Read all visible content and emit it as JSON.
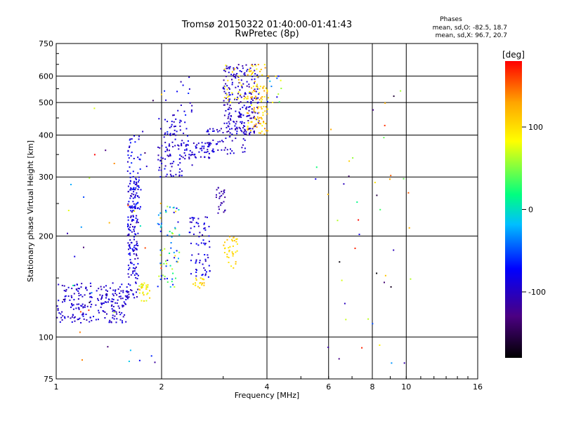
{
  "chart_data": {
    "type": "scatter",
    "title": "Tromsø 20150322 01:40:00-01:41:43",
    "subtitle": "RwPretec (8p)",
    "xlabel": "Frequency [MHz]",
    "ylabel": "Stationary phase Virtual Height [km]",
    "x_scale": "log2",
    "y_scale": "log",
    "xlim": [
      1,
      16
    ],
    "ylim": [
      75,
      750
    ],
    "x_ticks": [
      1,
      2,
      4,
      6,
      8,
      10,
      16
    ],
    "y_ticks": [
      75,
      100,
      200,
      300,
      400,
      500,
      600,
      750
    ],
    "x_grid": [
      2,
      4,
      6,
      8,
      10
    ],
    "y_grid": [
      100,
      200,
      300,
      400,
      500,
      600
    ],
    "grid": true,
    "legend": {
      "title": "Phases",
      "lines": [
        "mean, sd,O: -82.5, 18.7",
        "mean, sd,X:  96.7, 20.7"
      ],
      "placement": "top-right"
    },
    "colorbar": {
      "label": "[deg]",
      "range": [
        -180,
        180
      ],
      "ticks": [
        100,
        0,
        -100
      ],
      "colors": [
        "#000000",
        "#4b0082",
        "#0000ff",
        "#00bfff",
        "#00ff80",
        "#ffff00",
        "#ffa500",
        "#ff0000"
      ]
    },
    "point_clusters": [
      {
        "x": [
          1.0,
          1.6
        ],
        "y": [
          110,
          145
        ],
        "phase": [
          -110,
          -80
        ],
        "n": 230
      },
      {
        "x": [
          1.6,
          1.72
        ],
        "y": [
          130,
          300
        ],
        "phase": [
          -110,
          -70
        ],
        "n": 160
      },
      {
        "x": [
          1.6,
          1.75
        ],
        "y": [
          240,
          400
        ],
        "phase": [
          -100,
          -60
        ],
        "n": 60
      },
      {
        "x": [
          1.72,
          1.85
        ],
        "y": [
          128,
          145
        ],
        "phase": [
          60,
          120
        ],
        "n": 30
      },
      {
        "x": [
          1.95,
          2.25
        ],
        "y": [
          140,
          250
        ],
        "phase": [
          -100,
          100
        ],
        "n": 70
      },
      {
        "x": [
          1.95,
          2.3
        ],
        "y": [
          300,
          450
        ],
        "phase": [
          -110,
          -80
        ],
        "n": 80
      },
      {
        "x": [
          2.0,
          2.5
        ],
        "y": [
          300,
          600
        ],
        "phase": [
          -110,
          -60
        ],
        "n": 40
      },
      {
        "x": [
          2.3,
          2.9
        ],
        "y": [
          340,
          380
        ],
        "phase": [
          -110,
          -80
        ],
        "n": 60
      },
      {
        "x": [
          2.4,
          2.75
        ],
        "y": [
          150,
          230
        ],
        "phase": [
          -110,
          -70
        ],
        "n": 70
      },
      {
        "x": [
          2.45,
          2.65
        ],
        "y": [
          140,
          150
        ],
        "phase": [
          80,
          120
        ],
        "n": 20
      },
      {
        "x": [
          2.85,
          3.05
        ],
        "y": [
          230,
          280
        ],
        "phase": [
          -120,
          -100
        ],
        "n": 25
      },
      {
        "x": [
          3.0,
          3.3
        ],
        "y": [
          160,
          200
        ],
        "phase": [
          90,
          120
        ],
        "n": 35
      },
      {
        "x": [
          2.6,
          3.5
        ],
        "y": [
          350,
          420
        ],
        "phase": [
          -110,
          -80
        ],
        "n": 60
      },
      {
        "x": [
          3.0,
          3.8
        ],
        "y": [
          400,
          650
        ],
        "phase": [
          -120,
          -80
        ],
        "n": 220
      },
      {
        "x": [
          3.5,
          4.05
        ],
        "y": [
          400,
          650
        ],
        "phase": [
          80,
          140
        ],
        "n": 110
      },
      {
        "x": [
          3.0,
          3.5
        ],
        "y": [
          500,
          650
        ],
        "phase": [
          80,
          120
        ],
        "n": 25
      },
      {
        "x": [
          4.0,
          4.4
        ],
        "y": [
          500,
          600
        ],
        "phase": [
          -120,
          120
        ],
        "n": 15
      },
      {
        "x": [
          5.5,
          10.5
        ],
        "y": [
          80,
          600
        ],
        "phase": [
          -180,
          180
        ],
        "n": 45
      },
      {
        "x": [
          1.0,
          2.0
        ],
        "y": [
          80,
          600
        ],
        "phase": [
          -180,
          180
        ],
        "n": 40
      }
    ]
  }
}
